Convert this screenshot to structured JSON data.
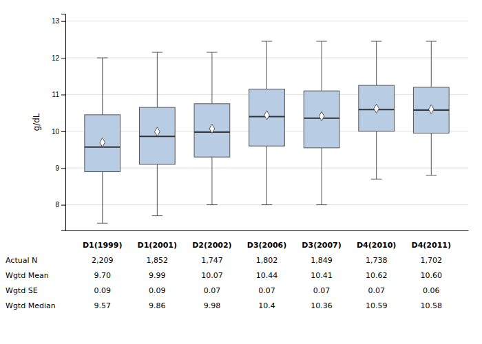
{
  "chart_data": {
    "type": "box",
    "categories": [
      "D1(1999)",
      "D1(2001)",
      "D2(2002)",
      "D3(2006)",
      "D3(2007)",
      "D4(2010)",
      "D4(2011)"
    ],
    "boxes": [
      {
        "whislo": 7.5,
        "q1": 8.9,
        "med": 9.57,
        "q3": 10.45,
        "whishi": 12.0,
        "mean": 9.7
      },
      {
        "whislo": 7.7,
        "q1": 9.1,
        "med": 9.86,
        "q3": 10.65,
        "whishi": 12.15,
        "mean": 9.99
      },
      {
        "whislo": 8.0,
        "q1": 9.3,
        "med": 9.98,
        "q3": 10.75,
        "whishi": 12.15,
        "mean": 10.07
      },
      {
        "whislo": 8.0,
        "q1": 9.6,
        "med": 10.4,
        "q3": 11.15,
        "whishi": 12.45,
        "mean": 10.44
      },
      {
        "whislo": 8.0,
        "q1": 9.55,
        "med": 10.36,
        "q3": 11.1,
        "whishi": 12.45,
        "mean": 10.41
      },
      {
        "whislo": 8.7,
        "q1": 10.0,
        "med": 10.59,
        "q3": 11.25,
        "whishi": 12.45,
        "mean": 10.62
      },
      {
        "whislo": 8.8,
        "q1": 9.95,
        "med": 10.58,
        "q3": 11.2,
        "whishi": 12.45,
        "mean": 10.6
      }
    ],
    "color": "#b8cce4",
    "ylabel": "g/dL",
    "ylim": [
      7.3,
      13.2
    ],
    "yticks": [
      8,
      9,
      10,
      11,
      12,
      13
    ],
    "grid": true,
    "table": [
      {
        "name": "Actual N",
        "values": [
          2209,
          1852,
          1747,
          1802,
          1849,
          1738,
          1702
        ],
        "value_labels": [
          "2,209",
          "1,852",
          "1,747",
          "1,802",
          "1,849",
          "1,738",
          "1,702"
        ]
      },
      {
        "name": "Wgtd Mean",
        "values": [
          9.7,
          9.99,
          10.07,
          10.44,
          10.41,
          10.62,
          10.6
        ],
        "value_labels": [
          "9.70",
          "9.99",
          "10.07",
          "10.44",
          "10.41",
          "10.62",
          "10.60"
        ]
      },
      {
        "name": "Wgtd SE",
        "values": [
          0.09,
          0.09,
          0.07,
          0.07,
          0.07,
          0.07,
          0.06
        ],
        "value_labels": [
          "0.09",
          "0.09",
          "0.07",
          "0.07",
          "0.07",
          "0.07",
          "0.06"
        ]
      },
      {
        "name": "Wgtd Median",
        "values": [
          9.57,
          9.86,
          9.98,
          10.4,
          10.36,
          10.59,
          10.58
        ],
        "value_labels": [
          "9.57",
          "9.86",
          "9.98",
          "10.4",
          "10.36",
          "10.59",
          "10.58"
        ]
      }
    ]
  }
}
